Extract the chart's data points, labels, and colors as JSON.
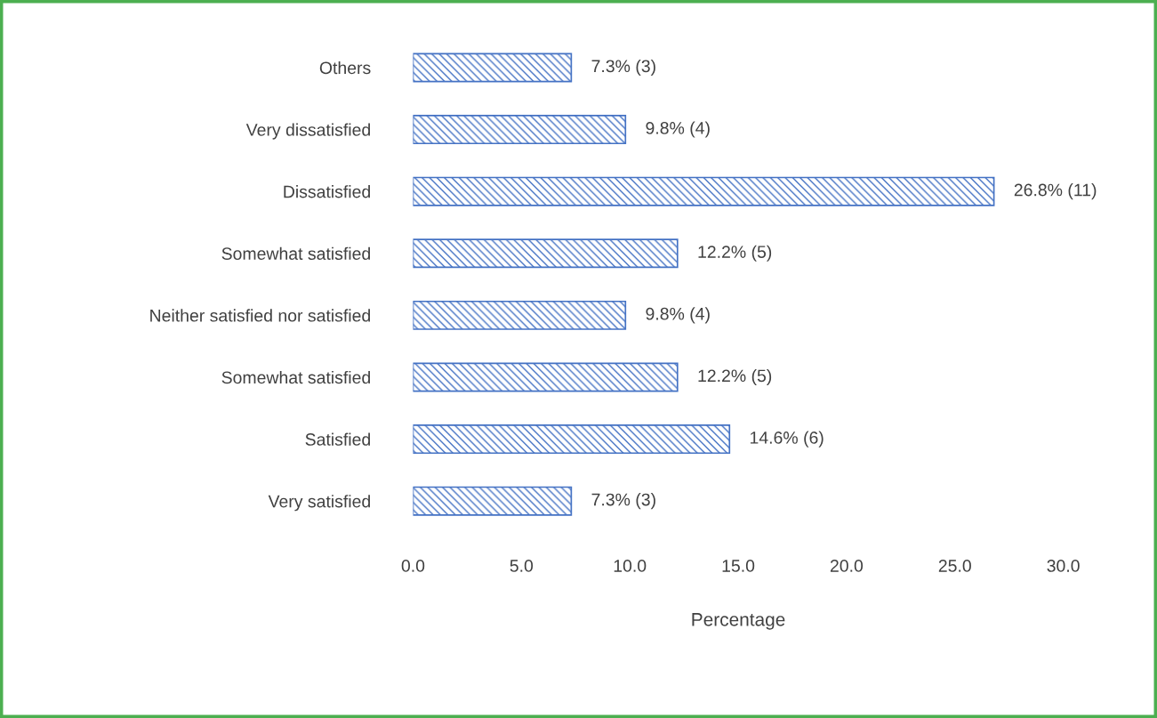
{
  "chart_data": {
    "type": "bar",
    "orientation": "horizontal",
    "categories": [
      "Others",
      "Very dissatisfied",
      "Dissatisfied",
      "Somewhat satisfied",
      "Neither satisfied nor satisfied",
      "Somewhat satisfied",
      "Satisfied",
      "Very satisfied"
    ],
    "values": [
      7.3,
      9.8,
      26.8,
      12.2,
      9.8,
      12.2,
      14.6,
      7.3
    ],
    "value_labels": [
      "7.3% (3)",
      "9.8% (4)",
      "26.8% (11)",
      "12.2% (5)",
      "9.8% (4)",
      "12.2% (5)",
      "14.6% (6)",
      "7.3% (3)"
    ],
    "color": "#4472c4",
    "xlabel": "Percentage",
    "xlim": [
      0,
      30
    ],
    "xticks": [
      {
        "value": 0,
        "label": "0.0"
      },
      {
        "value": 5,
        "label": "5.0"
      },
      {
        "value": 10,
        "label": "10.0"
      },
      {
        "value": 15,
        "label": "15.0"
      },
      {
        "value": 20,
        "label": "20.0"
      },
      {
        "value": 25,
        "label": "25.0"
      },
      {
        "value": 30,
        "label": "30.0"
      }
    ]
  }
}
